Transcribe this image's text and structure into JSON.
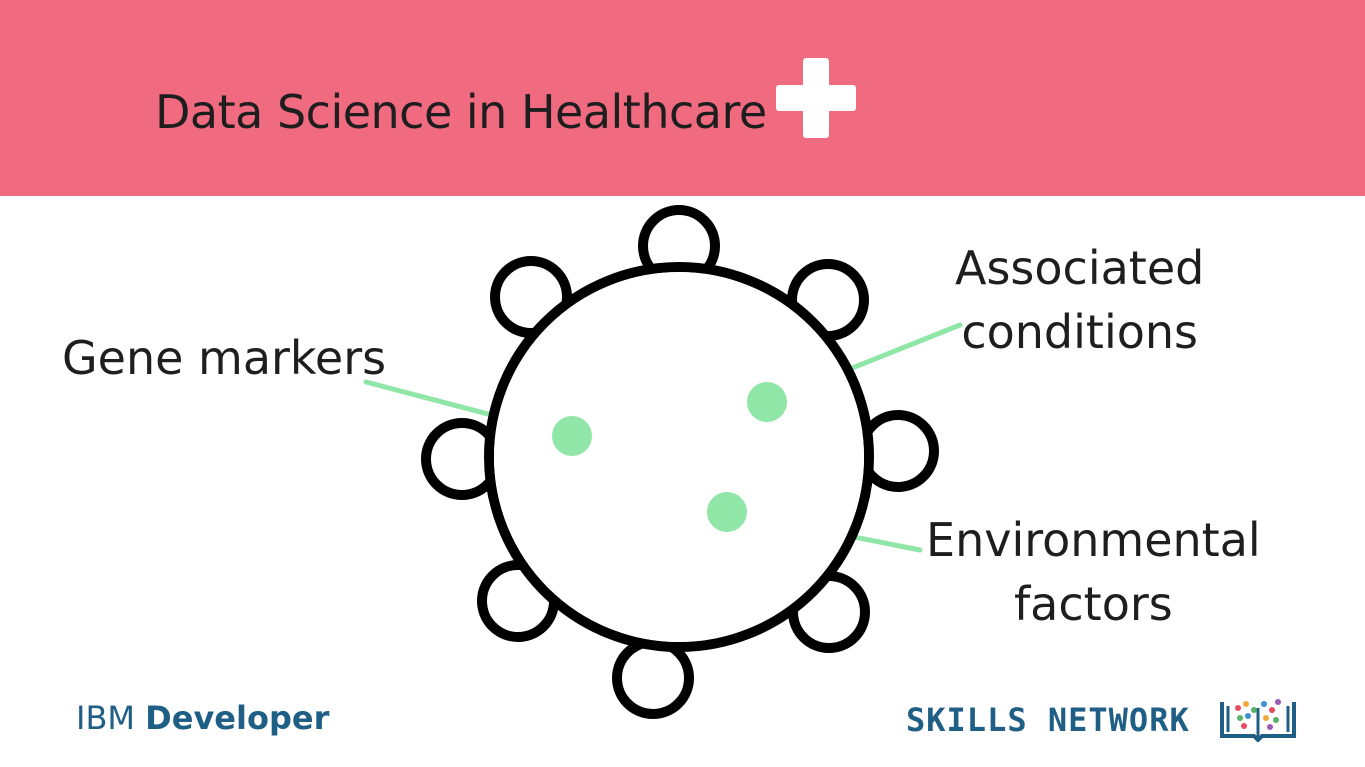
{
  "slide": {
    "title": "Data Science in Healthcare",
    "header_color": "#f06a80",
    "title_icon": "plus-icon"
  },
  "diagram": {
    "center_icon": "virus-cell-icon",
    "connector_color": "#8fe6a6",
    "labels": {
      "gene_markers": "Gene markers",
      "associated_line1": "Associated",
      "associated_line2": "conditions",
      "environmental_line1": "Environmental",
      "environmental_line2": "factors"
    }
  },
  "footer": {
    "ibm_word": "IBM",
    "developer_word": "Developer",
    "skills_network": "SKILLS NETWORK",
    "skills_logo_icon": "book-icon",
    "brand_color": "#1f5f86"
  }
}
